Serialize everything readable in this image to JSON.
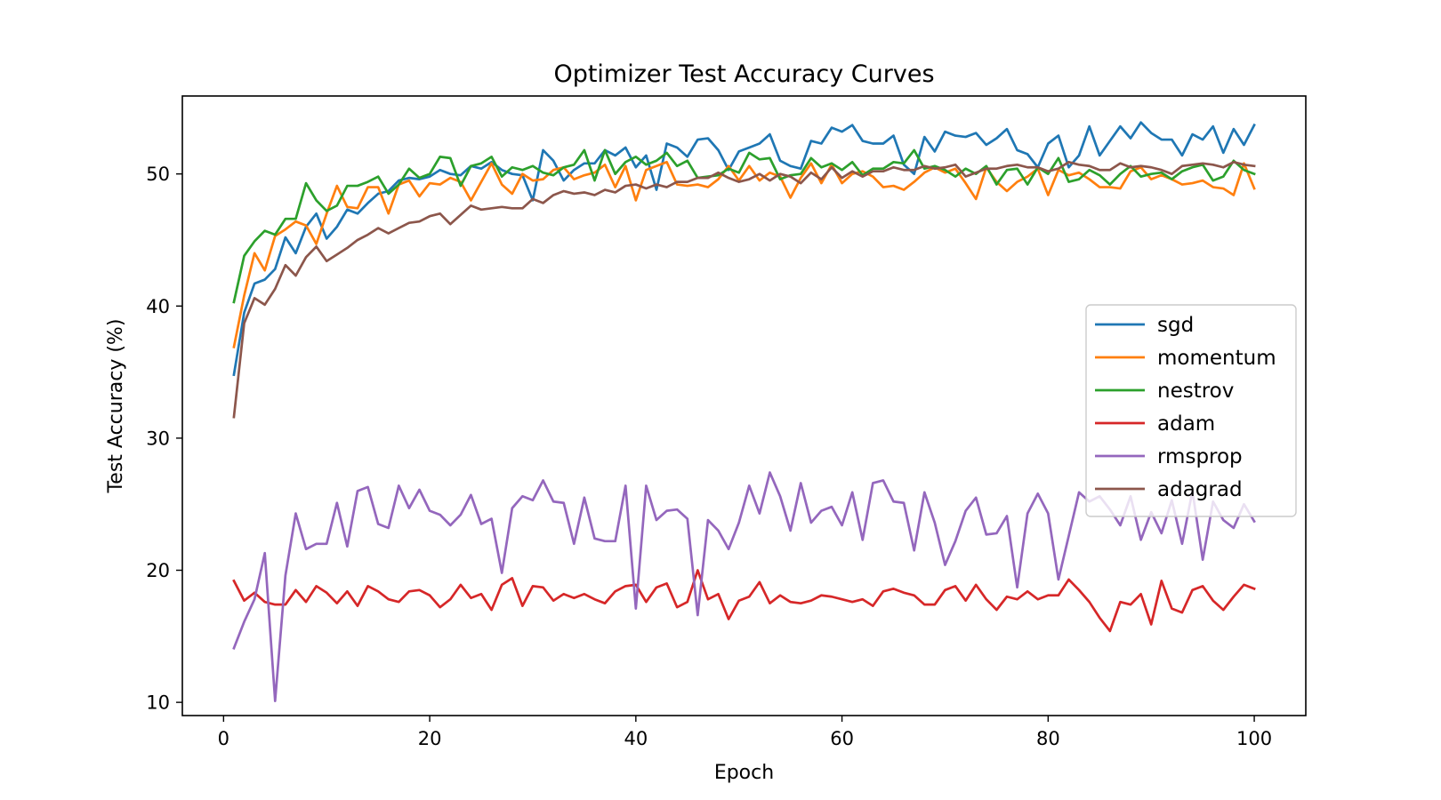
{
  "chart_data": {
    "type": "line",
    "title": "Optimizer Test Accuracy Curves",
    "xlabel": "Epoch",
    "ylabel": "Test Accuracy (%)",
    "xlim": [
      -4,
      105
    ],
    "ylim": [
      9.0,
      55.9
    ],
    "xticks": [
      0,
      20,
      40,
      60,
      80,
      100
    ],
    "yticks": [
      10,
      20,
      30,
      40,
      50
    ],
    "grid": false,
    "legend_position": "center-right",
    "x": [
      1,
      2,
      3,
      4,
      5,
      6,
      7,
      8,
      9,
      10,
      11,
      12,
      13,
      14,
      15,
      16,
      17,
      18,
      19,
      20,
      21,
      22,
      23,
      24,
      25,
      26,
      27,
      28,
      29,
      30,
      31,
      32,
      33,
      34,
      35,
      36,
      37,
      38,
      39,
      40,
      41,
      42,
      43,
      44,
      45,
      46,
      47,
      48,
      49,
      50,
      51,
      52,
      53,
      54,
      55,
      56,
      57,
      58,
      59,
      60,
      61,
      62,
      63,
      64,
      65,
      66,
      67,
      68,
      69,
      70,
      71,
      72,
      73,
      74,
      75,
      76,
      77,
      78,
      79,
      80,
      81,
      82,
      83,
      84,
      85,
      86,
      87,
      88,
      89,
      90,
      91,
      92,
      93,
      94,
      95,
      96,
      97,
      98,
      99,
      100
    ],
    "series": [
      {
        "name": "sgd",
        "color": "#1f77b4",
        "values": [
          34.8,
          39.5,
          41.7,
          42.0,
          42.8,
          45.2,
          44.0,
          46.0,
          47.0,
          45.1,
          46.0,
          47.3,
          47.0,
          47.8,
          48.5,
          48.7,
          49.5,
          49.7,
          49.6,
          49.8,
          50.3,
          50.0,
          49.9,
          50.6,
          50.4,
          50.9,
          50.3,
          50.0,
          49.9,
          48.0,
          51.8,
          51.0,
          49.5,
          50.3,
          50.8,
          50.8,
          51.8,
          51.4,
          52.0,
          50.5,
          51.4,
          48.8,
          52.3,
          52.0,
          51.3,
          52.6,
          52.7,
          51.8,
          50.3,
          51.7,
          52.0,
          52.3,
          53.0,
          51.0,
          50.6,
          50.4,
          52.5,
          52.3,
          53.5,
          53.2,
          53.7,
          52.5,
          52.3,
          52.3,
          52.9,
          50.7,
          50.0,
          52.8,
          51.7,
          53.2,
          52.9,
          52.8,
          53.1,
          52.2,
          52.7,
          53.4,
          51.8,
          51.5,
          50.5,
          52.3,
          52.9,
          50.5,
          51.4,
          53.6,
          51.4,
          52.5,
          53.6,
          52.7,
          53.9,
          53.1,
          52.6,
          52.6,
          51.4,
          53.0,
          52.6,
          53.6,
          51.6,
          53.4,
          52.2,
          53.7
        ]
      },
      {
        "name": "momentum",
        "color": "#ff7f0e",
        "values": [
          36.9,
          40.8,
          44.0,
          42.7,
          45.3,
          45.8,
          46.4,
          46.1,
          44.7,
          47.0,
          49.1,
          47.5,
          47.4,
          49.0,
          49.0,
          47.0,
          49.2,
          49.5,
          48.3,
          49.3,
          49.2,
          49.7,
          49.4,
          48.0,
          49.4,
          50.8,
          49.2,
          48.5,
          50.0,
          49.5,
          49.6,
          50.3,
          50.5,
          49.6,
          49.9,
          50.1,
          50.7,
          49.0,
          50.6,
          48.0,
          50.3,
          50.6,
          50.9,
          49.2,
          49.1,
          49.2,
          49.0,
          49.6,
          50.6,
          49.5,
          50.6,
          49.5,
          50.1,
          49.8,
          48.2,
          49.7,
          50.8,
          49.3,
          50.7,
          49.3,
          50.0,
          50.2,
          49.8,
          49.0,
          49.1,
          48.8,
          49.4,
          50.1,
          50.5,
          50.1,
          50.4,
          49.3,
          48.1,
          50.5,
          49.4,
          48.7,
          49.4,
          49.8,
          50.4,
          48.4,
          50.3,
          49.9,
          50.1,
          49.6,
          49.0,
          49.0,
          48.9,
          50.2,
          50.5,
          49.6,
          49.9,
          49.6,
          49.2,
          49.3,
          49.5,
          49.0,
          48.9,
          48.4,
          50.8,
          48.9
        ]
      },
      {
        "name": "nestrov",
        "color": "#2ca02c",
        "values": [
          40.3,
          43.8,
          44.9,
          45.7,
          45.4,
          46.6,
          46.6,
          49.3,
          48.0,
          47.2,
          47.6,
          49.1,
          49.1,
          49.4,
          49.8,
          48.5,
          49.2,
          50.4,
          49.7,
          50.0,
          51.3,
          51.2,
          49.1,
          50.6,
          50.8,
          51.3,
          49.8,
          50.5,
          50.3,
          50.6,
          50.1,
          49.9,
          50.5,
          50.7,
          51.8,
          49.5,
          51.8,
          50.0,
          50.9,
          51.3,
          50.7,
          51.0,
          51.6,
          50.6,
          51.0,
          49.7,
          49.8,
          49.9,
          50.4,
          50.1,
          51.6,
          51.1,
          51.2,
          49.6,
          49.9,
          50.0,
          51.2,
          50.5,
          50.8,
          50.3,
          50.9,
          49.9,
          50.4,
          50.4,
          50.9,
          50.8,
          51.8,
          50.4,
          50.6,
          50.3,
          49.8,
          50.4,
          50.0,
          50.6,
          49.2,
          50.3,
          50.4,
          49.2,
          50.5,
          50.0,
          51.2,
          49.4,
          49.6,
          50.3,
          49.9,
          49.2,
          50.0,
          50.6,
          49.8,
          50.0,
          50.1,
          49.6,
          50.2,
          50.5,
          50.7,
          49.5,
          49.8,
          51.0,
          50.3,
          50.0
        ]
      },
      {
        "name": "adam",
        "color": "#d62728",
        "values": [
          19.2,
          17.7,
          18.3,
          17.6,
          17.4,
          17.4,
          18.5,
          17.6,
          18.8,
          18.3,
          17.5,
          18.4,
          17.3,
          18.8,
          18.4,
          17.8,
          17.6,
          18.4,
          18.5,
          18.1,
          17.2,
          17.8,
          18.9,
          17.9,
          18.2,
          17.0,
          18.9,
          19.4,
          17.3,
          18.8,
          18.7,
          17.7,
          18.2,
          17.9,
          18.2,
          17.8,
          17.5,
          18.4,
          18.8,
          18.9,
          17.6,
          18.7,
          19.0,
          17.2,
          17.6,
          20.0,
          17.8,
          18.2,
          16.3,
          17.7,
          18.0,
          19.1,
          17.5,
          18.1,
          17.6,
          17.5,
          17.7,
          18.1,
          18.0,
          17.8,
          17.6,
          17.8,
          17.3,
          18.4,
          18.6,
          18.3,
          18.1,
          17.4,
          17.4,
          18.5,
          18.8,
          17.7,
          18.9,
          17.8,
          17.0,
          18.0,
          17.8,
          18.4,
          17.8,
          18.1,
          18.1,
          19.3,
          18.5,
          17.6,
          16.4,
          15.4,
          17.6,
          17.4,
          18.2,
          15.9,
          19.2,
          17.1,
          16.8,
          18.5,
          18.8,
          17.7,
          17.0,
          18.0,
          18.9,
          18.6
        ]
      },
      {
        "name": "rmsprop",
        "color": "#9467bd",
        "values": [
          14.1,
          16.1,
          17.8,
          21.3,
          10.1,
          19.6,
          24.3,
          21.6,
          22.0,
          22.0,
          25.1,
          21.8,
          26.0,
          26.3,
          23.5,
          23.2,
          26.4,
          24.7,
          26.1,
          24.5,
          24.2,
          23.4,
          24.2,
          25.7,
          23.5,
          23.9,
          19.8,
          24.7,
          25.6,
          25.3,
          26.8,
          25.2,
          25.1,
          22.0,
          25.5,
          22.4,
          22.2,
          22.2,
          26.4,
          17.1,
          26.4,
          23.8,
          24.5,
          24.6,
          23.9,
          16.6,
          23.8,
          23.0,
          21.6,
          23.6,
          26.4,
          24.3,
          27.4,
          25.6,
          23.0,
          26.6,
          23.6,
          24.5,
          24.8,
          23.4,
          25.9,
          22.3,
          26.6,
          26.8,
          25.2,
          25.1,
          21.5,
          25.9,
          23.6,
          20.4,
          22.2,
          24.5,
          25.5,
          22.7,
          22.8,
          24.1,
          18.7,
          24.3,
          25.8,
          24.3,
          19.3,
          22.6,
          25.9,
          25.2,
          25.6,
          24.6,
          23.4,
          25.6,
          22.3,
          24.4,
          22.8,
          25.3,
          22.0,
          26.0,
          20.8,
          25.2,
          23.8,
          23.2,
          25.0,
          23.7
        ]
      },
      {
        "name": "adagrad",
        "color": "#8c564b",
        "values": [
          31.6,
          38.7,
          40.6,
          40.1,
          41.3,
          43.1,
          42.3,
          43.7,
          44.5,
          43.4,
          43.9,
          44.4,
          45.0,
          45.4,
          45.9,
          45.5,
          45.9,
          46.3,
          46.4,
          46.8,
          47.0,
          46.2,
          46.9,
          47.6,
          47.3,
          47.4,
          47.5,
          47.4,
          47.4,
          48.1,
          47.8,
          48.4,
          48.7,
          48.5,
          48.6,
          48.4,
          48.8,
          48.6,
          49.1,
          49.2,
          48.9,
          49.2,
          49.0,
          49.4,
          49.4,
          49.7,
          49.7,
          50.1,
          49.7,
          49.4,
          49.6,
          50.0,
          49.5,
          50.0,
          49.8,
          49.3,
          50.1,
          49.6,
          50.5,
          49.7,
          50.2,
          49.8,
          50.2,
          50.2,
          50.5,
          50.3,
          50.3,
          50.6,
          50.4,
          50.5,
          50.7,
          49.8,
          50.1,
          50.4,
          50.4,
          50.6,
          50.7,
          50.5,
          50.5,
          50.2,
          50.4,
          50.9,
          50.7,
          50.6,
          50.3,
          50.3,
          50.8,
          50.5,
          50.6,
          50.5,
          50.3,
          50.0,
          50.6,
          50.7,
          50.8,
          50.7,
          50.5,
          50.9,
          50.7,
          50.6
        ]
      }
    ]
  }
}
